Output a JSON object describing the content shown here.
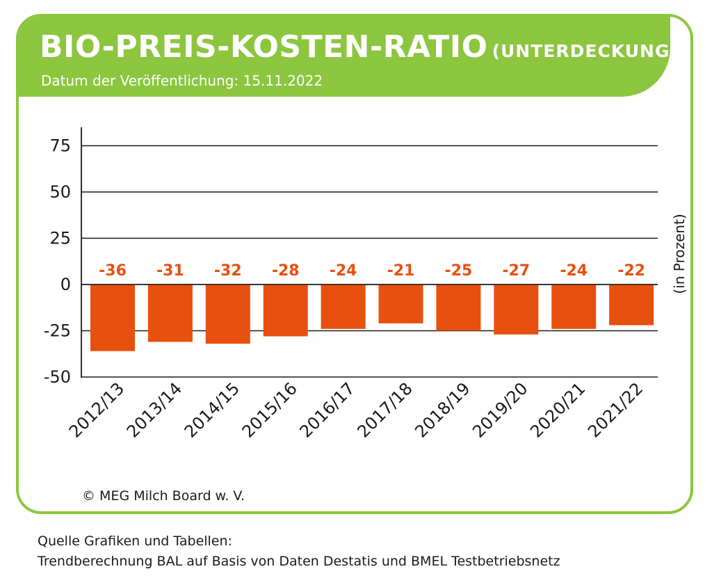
{
  "header": {
    "title": "BIO-PREIS-KOSTEN-RATIO",
    "title_suffix": "(UNTERDECKUNG)",
    "subtitle": "Datum der Veröffentlichung: 15.11.2022"
  },
  "footer": {
    "copyright": "© MEG Milch Board w. V.",
    "source_line1": "Quelle Grafiken und Tabellen:",
    "source_line2": "Trendberechnung BAL auf Basis von Daten Destatis und BMEL Testbetriebsnetz"
  },
  "colors": {
    "accent": "#8cc63f",
    "bar": "#e8500f",
    "label": "#e8500f",
    "axis": "#1a1a1a"
  },
  "chart_data": {
    "type": "bar",
    "title": "BIO-PREIS-KOSTEN-RATIO (UNTERDECKUNG)",
    "ylabel": "(in Prozent)",
    "xlabel": "",
    "ylim": [
      -50,
      85
    ],
    "yticks": [
      75,
      50,
      25,
      0,
      -25,
      -50
    ],
    "grid": true,
    "categories": [
      "2012/13",
      "2013/14",
      "2014/15",
      "2015/16",
      "2016/17",
      "2017/18",
      "2018/19",
      "2019/20",
      "2020/21",
      "2021/22"
    ],
    "values": [
      -36,
      -31,
      -32,
      -28,
      -24,
      -21,
      -25,
      -27,
      -24,
      -22
    ],
    "data_labels": [
      "-36",
      "-31",
      "-32",
      "-28",
      "-24",
      "-21",
      "-25",
      "-27",
      "-24",
      "-22"
    ]
  }
}
